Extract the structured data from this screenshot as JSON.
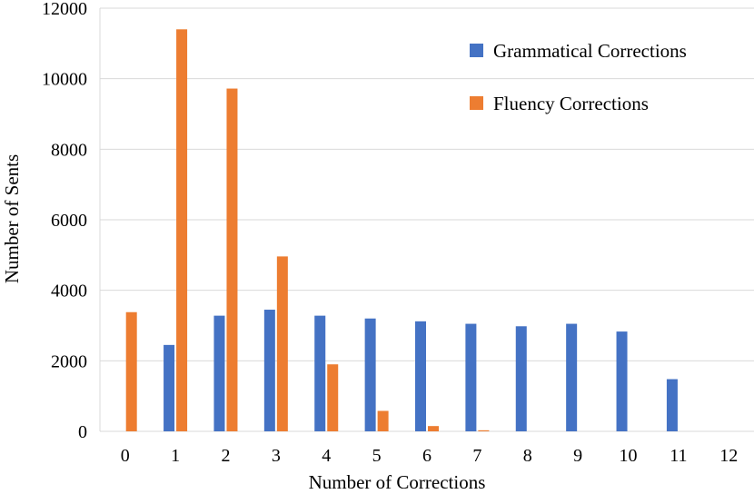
{
  "chart_data": {
    "type": "bar",
    "title": "",
    "xlabel": "Number of Corrections",
    "ylabel": "Number of Sents",
    "categories": [
      "0",
      "1",
      "2",
      "3",
      "4",
      "5",
      "6",
      "7",
      "8",
      "9",
      "10",
      "11",
      "12"
    ],
    "series": [
      {
        "name": "Grammatical Corrections",
        "color": "#4472c4",
        "values": [
          0,
          2450,
          3280,
          3450,
          3280,
          3200,
          3120,
          3050,
          2980,
          3050,
          2830,
          1480,
          0
        ]
      },
      {
        "name": "Fluency Corrections",
        "color": "#ed7d31",
        "values": [
          3380,
          11400,
          9720,
          4960,
          1900,
          580,
          150,
          30,
          0,
          0,
          0,
          0,
          0
        ]
      }
    ],
    "ylim": [
      0,
      12000
    ],
    "yticks": [
      "0",
      "2000",
      "4000",
      "6000",
      "8000",
      "10000",
      "12000"
    ],
    "grid": true,
    "legend_position": "top-right"
  }
}
